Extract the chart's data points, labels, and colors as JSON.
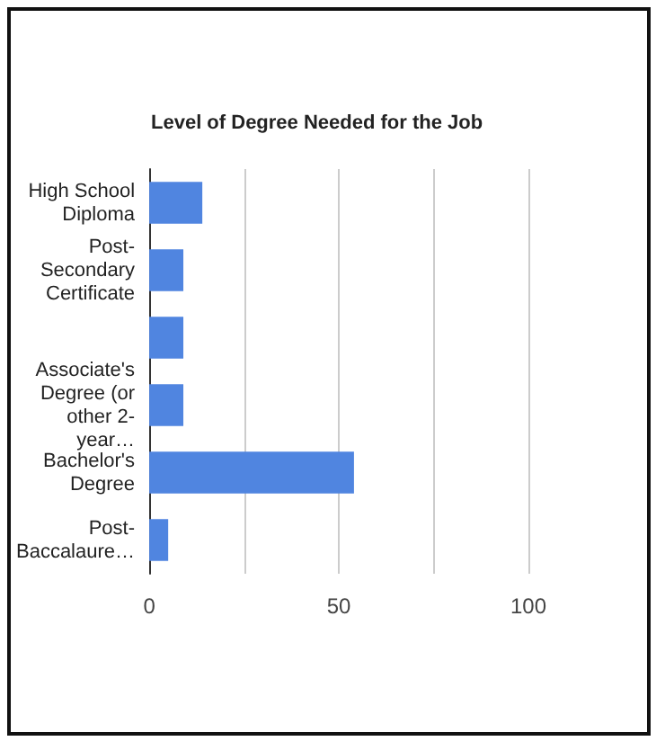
{
  "chart_data": {
    "type": "bar",
    "orientation": "horizontal",
    "title": "Level of Degree Needed for the Job",
    "categories": [
      "High School Diploma",
      "Post-Secondary Certificate",
      null,
      "Associate's Degree (or other 2-year…",
      "Bachelor's Degree",
      "Post-Baccalaure…"
    ],
    "values": [
      14,
      9,
      9,
      9,
      54,
      5
    ],
    "color": "#5085e0",
    "xlim": [
      0,
      100
    ],
    "xticks": [
      0,
      {
        "value": 25,
        "label": null
      },
      50,
      {
        "value": 75,
        "label": null
      },
      100
    ],
    "grid": "x"
  }
}
